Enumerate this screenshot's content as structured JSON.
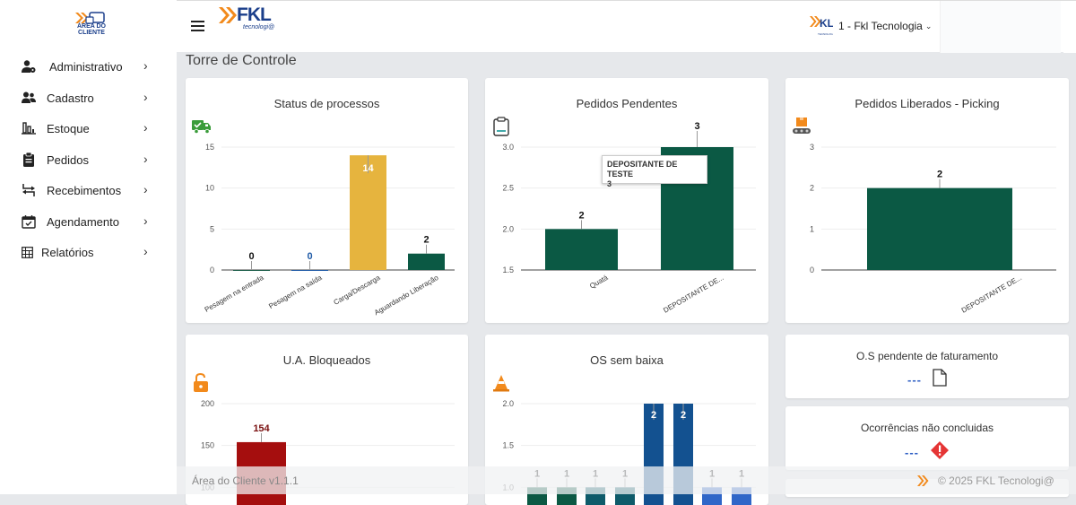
{
  "sidebar": {
    "logo_text_1": "ÁREA DO",
    "logo_text_2": "CLIENTE",
    "items": [
      {
        "label": "Administrativo",
        "icon": "users-cog-icon"
      },
      {
        "label": "Cadastro",
        "icon": "user-group-icon"
      },
      {
        "label": "Estoque",
        "icon": "bar-chart-icon"
      },
      {
        "label": "Pedidos",
        "icon": "clipboard-icon"
      },
      {
        "label": "Recebimentos",
        "icon": "transfer-icon"
      },
      {
        "label": "Agendamento",
        "icon": "calendar-check-icon"
      },
      {
        "label": "Relatórios",
        "icon": "report-table-icon"
      }
    ]
  },
  "header": {
    "logo": "FKL",
    "logo_sub": "tecnologi@",
    "company": "1 - Fkl Tecnologia",
    "company_logo_sub": "TECNOLOG"
  },
  "page": {
    "title": "Torre de Controle"
  },
  "cards": {
    "status": {
      "title": "Status de processos",
      "chart_data": {
        "type": "bar",
        "categories": [
          "Pesagem na entrada",
          "Pesagem na saída",
          "Carga/Descarga",
          "Aguardando Liberação"
        ],
        "values": [
          0,
          0,
          14,
          2
        ],
        "colors": [
          "#1a5c48",
          "#1f5aa6",
          "#e6b43e",
          "#0b5944"
        ],
        "label_colors": [
          "#111",
          "#1f5aa6",
          "#ffffff",
          "#111"
        ],
        "yticks": [
          0,
          5,
          10,
          15
        ],
        "ylim": [
          0,
          15
        ]
      }
    },
    "pendentes": {
      "title": "Pedidos Pendentes",
      "tooltip_line1": "DEPOSITANTE DE TESTE",
      "tooltip_line2": "3",
      "chart_data": {
        "type": "bar",
        "categories": [
          "Quatá",
          "DEPOSITANTE DE..."
        ],
        "values": [
          2,
          3
        ],
        "color": "#0b5944",
        "yticks": [
          "1.5",
          "2.0",
          "2.5",
          "3.0"
        ],
        "ylim": [
          1.5,
          3.0
        ]
      }
    },
    "liberados": {
      "title": "Pedidos Liberados - Picking",
      "chart_data": {
        "type": "bar",
        "categories": [
          "DEPOSITANTE DE..."
        ],
        "values": [
          2
        ],
        "color": "#0b5944",
        "yticks": [
          0,
          1,
          2,
          3
        ],
        "ylim": [
          0,
          3
        ]
      }
    },
    "bloqueados": {
      "title": "U.A. Bloqueados",
      "chart_data": {
        "type": "bar",
        "values": [
          154
        ],
        "color": "#a50e0e",
        "yticks": [
          100,
          150,
          200
        ],
        "ylim": [
          50,
          200
        ]
      }
    },
    "os_sem_baixa": {
      "title": "OS sem baixa",
      "chart_data": {
        "type": "bar",
        "values": [
          1,
          1,
          1,
          1,
          2,
          2,
          1,
          1
        ],
        "colors": [
          "#0b5944",
          "#0b5944",
          "#0e5b6a",
          "#0e5b6a",
          "#135190",
          "#135190",
          "#2f66c8",
          "#2f66c8"
        ],
        "yticks": [
          "1.0",
          "1.5",
          "2.0"
        ],
        "ylim": [
          0.5,
          2.0
        ]
      }
    },
    "faturamento": {
      "title": "O.S pendente de faturamento",
      "value": "---"
    },
    "ocorrencias": {
      "title": "Ocorrências não concluidas",
      "value": "---"
    }
  },
  "footer": {
    "version": "Área do Cliente v1.1.1",
    "copyright": "© 2025 FKL Tecnologi@"
  }
}
